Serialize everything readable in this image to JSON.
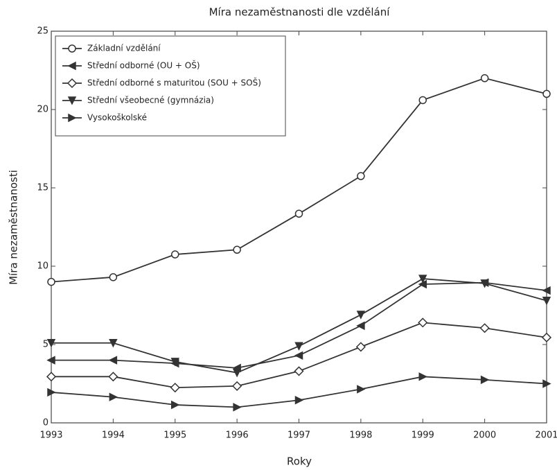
{
  "chart_data": {
    "type": "line",
    "title": "Míra nezaměstnanosti dle vzdělání",
    "xlabel": "Roky",
    "ylabel": "Míra nezaměstnanosti",
    "x": [
      1993,
      1994,
      1995,
      1996,
      1997,
      1998,
      1999,
      2000,
      2001
    ],
    "xlim": [
      1993,
      2001
    ],
    "xticks": [
      1993,
      1994,
      1995,
      1996,
      1997,
      1998,
      1999,
      2000,
      2001
    ],
    "ylim": [
      0,
      25
    ],
    "yticks": [
      0,
      5,
      10,
      15,
      20,
      25
    ],
    "legend": "upper left",
    "series": [
      {
        "name": "Základní vzdělání",
        "color": "#333333",
        "marker": "o",
        "values": [
          9.0,
          9.3,
          10.75,
          11.05,
          13.35,
          15.75,
          20.6,
          22.0,
          21.0
        ]
      },
      {
        "name": "Střední odborné (OU + OŠ)",
        "color": "#333333",
        "marker": "<",
        "values": [
          4.0,
          4.0,
          3.8,
          3.5,
          4.3,
          6.2,
          8.85,
          8.95,
          8.45
        ]
      },
      {
        "name": "Střední odborné s maturitou (SOU + SOŠ)",
        "color": "#333333",
        "marker": "d",
        "values": [
          2.95,
          2.95,
          2.25,
          2.35,
          3.3,
          4.85,
          6.4,
          6.05,
          5.45
        ]
      },
      {
        "name": "Střední všeobecné (gymnázia)",
        "color": "#333333",
        "marker": "v",
        "values": [
          5.1,
          5.1,
          3.9,
          3.2,
          4.9,
          6.9,
          9.2,
          8.9,
          7.8
        ]
      },
      {
        "name": "Vysokoškolské",
        "color": "#333333",
        "marker": ">",
        "values": [
          1.95,
          1.65,
          1.15,
          1.0,
          1.45,
          2.15,
          2.95,
          2.75,
          2.5
        ]
      }
    ]
  }
}
